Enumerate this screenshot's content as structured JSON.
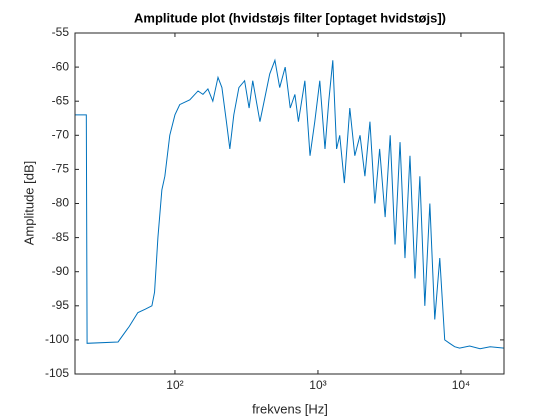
{
  "chart_data": {
    "type": "line",
    "title": "Amplitude plot (hvidstøjs filter [optaget hvidstøjs])",
    "xlabel": "frekvens [Hz]",
    "ylabel": "Amplitude [dB]",
    "xscale": "log",
    "xlim": [
      20,
      20000
    ],
    "ylim": [
      -105,
      -55
    ],
    "xticks": [
      {
        "value": 100,
        "label": "10²"
      },
      {
        "value": 1000,
        "label": "10³"
      },
      {
        "value": 10000,
        "label": "10⁴"
      }
    ],
    "yticks": [
      -105,
      -100,
      -95,
      -90,
      -85,
      -80,
      -75,
      -70,
      -65,
      -60,
      -55
    ],
    "grid": false,
    "x": [
      20,
      24,
      24.3,
      40,
      48,
      55,
      62,
      69,
      72,
      76,
      81,
      85,
      92,
      100,
      108,
      127,
      145,
      157,
      170,
      184,
      200,
      213,
      229,
      242,
      258,
      280,
      307,
      330,
      350,
      393,
      430,
      460,
      500,
      540,
      590,
      640,
      690,
      730,
      810,
      880,
      950,
      1030,
      1120,
      1190,
      1270,
      1350,
      1420,
      1530,
      1670,
      1810,
      1970,
      2130,
      2310,
      2500,
      2700,
      2950,
      3200,
      3460,
      3750,
      4060,
      4400,
      4770,
      5160,
      5590,
      6060,
      6560,
      7110,
      7700,
      8330,
      9030,
      9780,
      11500,
      13600,
      16000,
      20000
    ],
    "series": [
      {
        "name": "Amplitude",
        "color": "#0072bd",
        "values": [
          -67,
          -67,
          -100.5,
          -100.3,
          -98,
          -96,
          -95.5,
          -95,
          -93,
          -85,
          -78,
          -76,
          -70,
          -67,
          -65.5,
          -64.8,
          -63.5,
          -64,
          -63.2,
          -65,
          -61.5,
          -63,
          -68,
          -72,
          -67,
          -63,
          -62,
          -66,
          -62,
          -68,
          -64,
          -61,
          -59,
          -63,
          -60,
          -66,
          -64,
          -68,
          -62,
          -73,
          -68,
          -62,
          -72,
          -65,
          -59,
          -72,
          -70,
          -77,
          -66,
          -73,
          -70,
          -76,
          -68,
          -80,
          -72,
          -82,
          -70,
          -86,
          -71,
          -88,
          -73,
          -91,
          -76,
          -95,
          -80,
          -97,
          -88,
          -100,
          -100.5,
          -101,
          -101.2,
          -100.9,
          -101.3,
          -101,
          -101.2
        ]
      }
    ]
  }
}
